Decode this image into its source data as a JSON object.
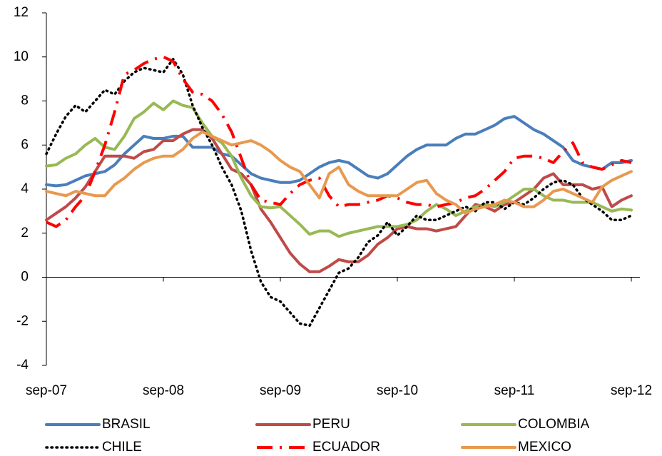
{
  "chart_data": {
    "type": "line",
    "categories": [
      "sep-07",
      null,
      null,
      null,
      null,
      null,
      null,
      null,
      null,
      null,
      null,
      null,
      "sep-08",
      null,
      null,
      null,
      null,
      null,
      null,
      null,
      null,
      null,
      null,
      null,
      "sep-09",
      null,
      null,
      null,
      null,
      null,
      null,
      null,
      null,
      null,
      null,
      null,
      "sep-10",
      null,
      null,
      null,
      null,
      null,
      null,
      null,
      null,
      null,
      null,
      null,
      "sep-11",
      null,
      null,
      null,
      null,
      null,
      null,
      null,
      null,
      null,
      null,
      null,
      "sep-12"
    ],
    "ylim": [
      -4,
      12
    ],
    "yticks": [
      -4,
      -2,
      0,
      2,
      4,
      6,
      8,
      10,
      12
    ],
    "series": [
      {
        "name": "BRASIL",
        "color": "#4a7ebb",
        "style": "solid",
        "values": [
          4.2,
          4.15,
          4.2,
          4.4,
          4.6,
          4.7,
          4.8,
          5.1,
          5.6,
          6.0,
          6.4,
          6.3,
          6.3,
          6.4,
          6.4,
          5.9,
          5.9,
          5.9,
          5.6,
          5.5,
          5.1,
          4.7,
          4.5,
          4.4,
          4.3,
          4.3,
          4.4,
          4.7,
          5.0,
          5.2,
          5.3,
          5.2,
          4.9,
          4.6,
          4.5,
          4.7,
          5.1,
          5.5,
          5.8,
          6.0,
          6.0,
          6.0,
          6.3,
          6.5,
          6.5,
          6.7,
          6.9,
          7.2,
          7.3,
          7.0,
          6.7,
          6.5,
          6.2,
          5.9,
          5.3,
          5.1,
          5.0,
          4.9,
          5.2,
          5.2,
          5.3
        ]
      },
      {
        "name": "PERU",
        "color": "#be4b48",
        "style": "solid",
        "values": [
          2.6,
          2.9,
          3.2,
          3.6,
          4.1,
          4.8,
          5.5,
          5.5,
          5.5,
          5.4,
          5.7,
          5.8,
          6.2,
          6.2,
          6.5,
          6.7,
          6.7,
          6.3,
          5.6,
          4.9,
          4.7,
          4.2,
          3.1,
          2.5,
          1.8,
          1.1,
          0.6,
          0.25,
          0.25,
          0.5,
          0.8,
          0.7,
          0.7,
          1.0,
          1.5,
          1.8,
          2.2,
          2.3,
          2.2,
          2.2,
          2.1,
          2.2,
          2.3,
          2.8,
          3.3,
          3.2,
          3.0,
          3.3,
          3.4,
          3.7,
          4.0,
          4.5,
          4.7,
          4.2,
          4.2,
          4.2,
          4.0,
          4.1,
          3.2,
          3.5,
          3.7
        ]
      },
      {
        "name": "COLOMBIA",
        "color": "#98b954",
        "style": "solid",
        "values": [
          5.05,
          5.1,
          5.4,
          5.6,
          6.0,
          6.3,
          5.9,
          5.8,
          6.4,
          7.2,
          7.5,
          7.9,
          7.6,
          8.0,
          7.8,
          7.7,
          7.0,
          6.4,
          6.1,
          5.5,
          4.5,
          3.7,
          3.2,
          3.15,
          3.2,
          2.8,
          2.4,
          1.95,
          2.1,
          2.1,
          1.85,
          2.0,
          2.1,
          2.2,
          2.3,
          2.3,
          2.3,
          2.4,
          2.6,
          3.0,
          3.3,
          3.1,
          2.8,
          3.0,
          3.2,
          3.3,
          3.2,
          3.4,
          3.7,
          4.0,
          4.0,
          3.7,
          3.5,
          3.5,
          3.4,
          3.4,
          3.4,
          3.2,
          3.0,
          3.1,
          3.05
        ]
      },
      {
        "name": "CHILE",
        "color": "#000000",
        "style": "dotted",
        "values": [
          5.6,
          6.5,
          7.3,
          7.8,
          7.5,
          8.0,
          8.5,
          8.3,
          8.9,
          9.3,
          9.5,
          9.4,
          9.3,
          9.9,
          9.2,
          7.8,
          6.8,
          6.0,
          5.0,
          4.2,
          3.0,
          1.2,
          -0.2,
          -0.9,
          -1.1,
          -1.6,
          -2.1,
          -2.2,
          -1.4,
          -0.6,
          0.2,
          0.4,
          0.9,
          1.6,
          1.9,
          2.5,
          1.9,
          2.3,
          2.8,
          2.6,
          2.6,
          2.8,
          3.0,
          3.2,
          3.0,
          3.4,
          3.4,
          3.1,
          3.4,
          3.3,
          3.6,
          4.0,
          4.3,
          4.4,
          4.2,
          3.6,
          3.3,
          3.0,
          2.6,
          2.6,
          2.8
        ]
      },
      {
        "name": "ECUADOR",
        "color": "#ff0000",
        "style": "dashdot",
        "values": [
          2.5,
          2.3,
          2.6,
          3.2,
          3.7,
          4.8,
          6.0,
          7.5,
          9.2,
          9.4,
          9.7,
          9.9,
          10.0,
          9.8,
          9.0,
          8.4,
          8.3,
          8.0,
          7.4,
          6.6,
          5.4,
          4.2,
          3.5,
          3.4,
          3.3,
          3.8,
          4.2,
          4.4,
          4.5,
          3.7,
          3.2,
          3.3,
          3.3,
          3.4,
          3.5,
          3.7,
          3.6,
          3.4,
          3.3,
          3.3,
          3.2,
          3.3,
          3.4,
          3.6,
          3.7,
          4.0,
          4.4,
          4.8,
          5.4,
          5.5,
          5.5,
          5.4,
          5.2,
          5.7,
          6.1,
          5.2,
          5.0,
          4.9,
          5.1,
          5.3,
          5.2
        ]
      },
      {
        "name": "MEXICO",
        "color": "#e8994f",
        "style": "solid",
        "values": [
          3.9,
          3.8,
          3.7,
          3.9,
          3.8,
          3.7,
          3.7,
          4.2,
          4.5,
          4.9,
          5.2,
          5.4,
          5.5,
          5.5,
          5.8,
          6.3,
          6.6,
          6.4,
          6.2,
          6.0,
          6.1,
          6.2,
          6.0,
          5.7,
          5.3,
          5.0,
          4.8,
          4.2,
          3.6,
          4.7,
          5.0,
          4.2,
          3.9,
          3.7,
          3.7,
          3.7,
          3.7,
          4.0,
          4.3,
          4.4,
          3.8,
          3.5,
          3.3,
          2.9,
          3.1,
          3.2,
          3.3,
          3.5,
          3.4,
          3.2,
          3.2,
          3.5,
          3.9,
          4.0,
          3.8,
          3.6,
          3.4,
          4.1,
          4.4,
          4.6,
          4.8
        ]
      }
    ]
  }
}
